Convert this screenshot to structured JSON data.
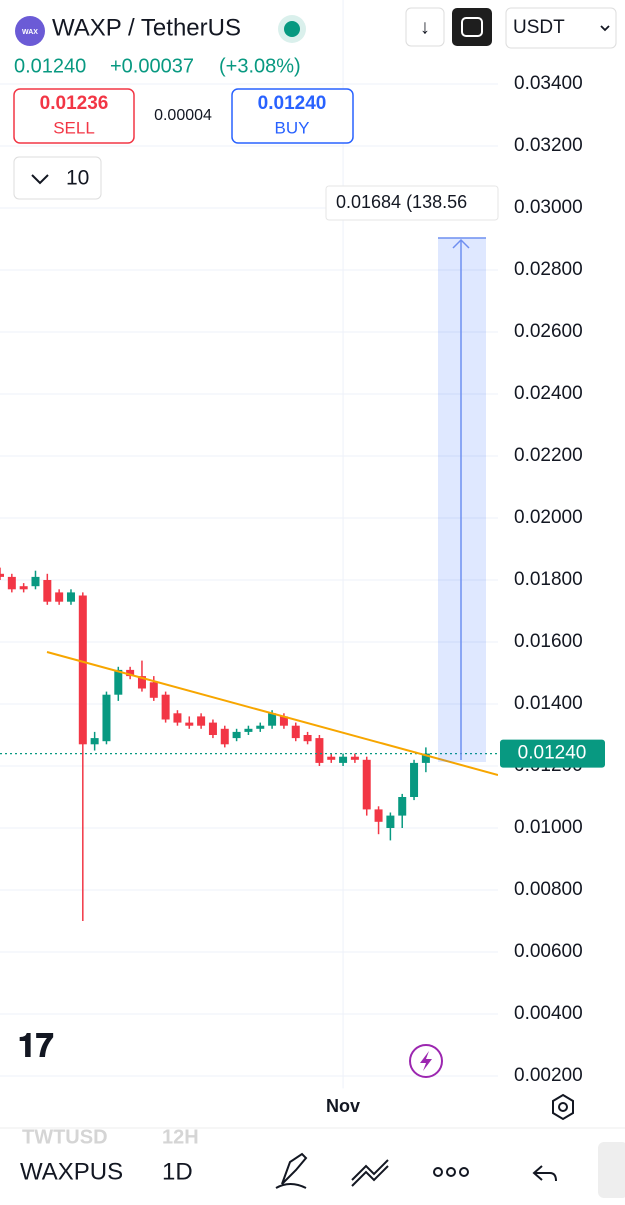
{
  "ui": {
    "symbol": "WAXP / TetherUS",
    "price": "0.01240",
    "change": "+0.00037",
    "change_pct": "(+3.08%)",
    "sell_price": "0.01236",
    "sell": "SELL",
    "spread": "0.00004",
    "buy_price": "0.01240",
    "buy": "BUY",
    "quantity": "10",
    "currency": "USDT",
    "measure_label": "0.01684 (138.56",
    "bottom_symbol": "WAXPUS",
    "bottom_interval": "1D",
    "ghost_symbol": "TWTUSD",
    "ghost_interval": "12H"
  },
  "chart_data": {
    "type": "candlestick",
    "open": [
      0.0182,
      0.0181,
      0.0178,
      0.0178,
      0.018,
      0.0176,
      0.0173,
      0.0175,
      0.0127,
      0.0128,
      0.0143,
      0.0151,
      0.0149,
      0.0147,
      0.0143,
      0.0137,
      0.0134,
      0.0136,
      0.0134,
      0.0132,
      0.0129,
      0.0131,
      0.0132,
      0.0133,
      0.0136,
      0.0133,
      0.013,
      0.0129,
      0.0123,
      0.0121,
      0.0123,
      0.0122,
      0.0106,
      0.01,
      0.0104,
      0.011,
      0.0121
    ],
    "high": [
      0.0184,
      0.0182,
      0.0179,
      0.0183,
      0.0182,
      0.0177,
      0.0177,
      0.0176,
      0.0131,
      0.0144,
      0.0152,
      0.0152,
      0.0154,
      0.0149,
      0.0144,
      0.0138,
      0.0136,
      0.0137,
      0.0135,
      0.0133,
      0.0132,
      0.0133,
      0.0134,
      0.0138,
      0.0137,
      0.0134,
      0.0131,
      0.013,
      0.0124,
      0.0124,
      0.0124,
      0.0123,
      0.0107,
      0.0105,
      0.0111,
      0.0122,
      0.0126
    ],
    "low": [
      0.018,
      0.0176,
      0.0176,
      0.0177,
      0.0172,
      0.0172,
      0.0172,
      0.007,
      0.0125,
      0.0127,
      0.0141,
      0.0148,
      0.0144,
      0.0141,
      0.0134,
      0.0133,
      0.0132,
      0.0132,
      0.0129,
      0.0126,
      0.0128,
      0.013,
      0.0131,
      0.0132,
      0.0132,
      0.0128,
      0.0127,
      0.012,
      0.0121,
      0.012,
      0.0121,
      0.0104,
      0.0098,
      0.0096,
      0.01,
      0.0109,
      0.0118
    ],
    "close": [
      0.0181,
      0.0177,
      0.0177,
      0.0181,
      0.0173,
      0.0173,
      0.0176,
      0.0127,
      0.0129,
      0.0143,
      0.0151,
      0.0149,
      0.0145,
      0.0142,
      0.0135,
      0.0134,
      0.0133,
      0.0133,
      0.013,
      0.0127,
      0.0131,
      0.0132,
      0.0133,
      0.0137,
      0.0133,
      0.0129,
      0.0128,
      0.0121,
      0.0122,
      0.0123,
      0.0122,
      0.0106,
      0.0102,
      0.0104,
      0.011,
      0.0121,
      0.0124
    ],
    "up_color": "#089981",
    "down_color": "#f23645",
    "xticks": [
      {
        "value": 29,
        "label": "Nov"
      }
    ],
    "ylim": [
      0.0016,
      0.0348
    ],
    "yticks": [
      {
        "value": 0.034,
        "label": "0.03400"
      },
      {
        "value": 0.032,
        "label": "0.03200"
      },
      {
        "value": 0.03,
        "label": "0.03000"
      },
      {
        "value": 0.028,
        "label": "0.02800"
      },
      {
        "value": 0.026,
        "label": "0.02600"
      },
      {
        "value": 0.024,
        "label": "0.02400"
      },
      {
        "value": 0.022,
        "label": "0.02200"
      },
      {
        "value": 0.02,
        "label": "0.02000"
      },
      {
        "value": 0.018,
        "label": "0.01800"
      },
      {
        "value": 0.016,
        "label": "0.01600"
      },
      {
        "value": 0.014,
        "label": "0.01400"
      },
      {
        "value": 0.012,
        "label": "0.01200"
      },
      {
        "value": 0.01,
        "label": "0.01000"
      },
      {
        "value": 0.008,
        "label": "0.00800"
      },
      {
        "value": 0.006,
        "label": "0.00600"
      },
      {
        "value": 0.004,
        "label": "0.00400"
      },
      {
        "value": 0.002,
        "label": "0.00200"
      }
    ],
    "last_price": {
      "value": 0.0124,
      "label": "0.01240"
    },
    "grid": true
  }
}
